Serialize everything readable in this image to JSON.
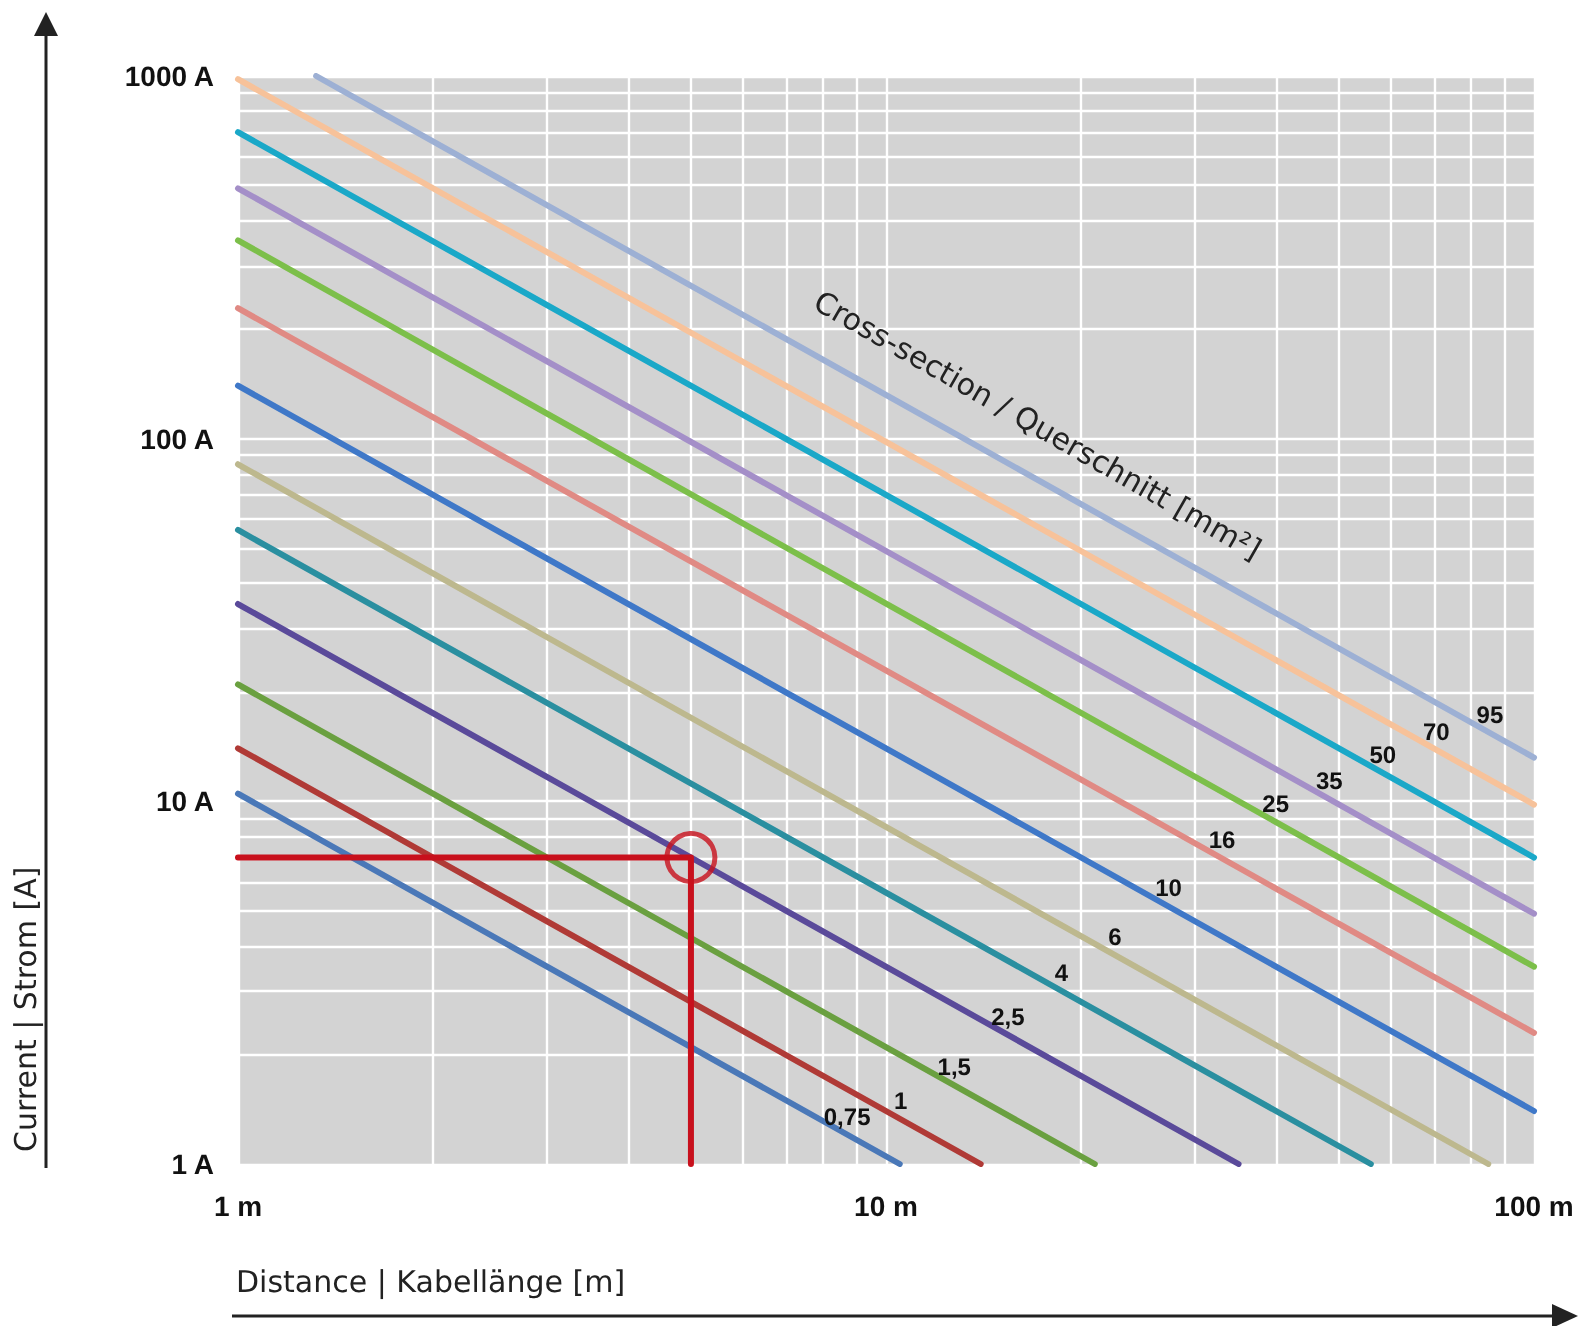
{
  "chart_data": {
    "type": "line",
    "xlabel": "Distance | Kabellänge [m]",
    "ylabel": "Current | Strom [A]",
    "annotations": [
      "Cross-section / Querschnitt [mm²]"
    ],
    "log": "xy",
    "grid": true,
    "legend": false,
    "line_style": "solid",
    "xlim": [
      1,
      100
    ],
    "ylim": [
      1,
      1000
    ],
    "xticks": [
      {
        "value": 1,
        "label": "1 m"
      },
      {
        "value": 2,
        "label": null
      },
      {
        "value": 3,
        "label": null
      },
      {
        "value": 4,
        "label": null
      },
      {
        "value": 5,
        "label": null
      },
      {
        "value": 6,
        "label": null
      },
      {
        "value": 7,
        "label": null
      },
      {
        "value": 8,
        "label": null
      },
      {
        "value": 9,
        "label": null
      },
      {
        "value": 10,
        "label": "10 m"
      },
      {
        "value": 20,
        "label": null
      },
      {
        "value": 30,
        "label": null
      },
      {
        "value": 40,
        "label": null
      },
      {
        "value": 50,
        "label": null
      },
      {
        "value": 60,
        "label": null
      },
      {
        "value": 70,
        "label": null
      },
      {
        "value": 80,
        "label": null
      },
      {
        "value": 90,
        "label": null
      },
      {
        "value": 100,
        "label": "100 m"
      }
    ],
    "yticks": [
      {
        "value": 1,
        "label": "1 A"
      },
      {
        "value": 2,
        "label": null
      },
      {
        "value": 3,
        "label": null
      },
      {
        "value": 4,
        "label": null
      },
      {
        "value": 5,
        "label": null
      },
      {
        "value": 6,
        "label": null
      },
      {
        "value": 7,
        "label": null
      },
      {
        "value": 8,
        "label": null
      },
      {
        "value": 9,
        "label": null
      },
      {
        "value": 10,
        "label": "10 A"
      },
      {
        "value": 20,
        "label": null
      },
      {
        "value": 30,
        "label": null
      },
      {
        "value": 40,
        "label": null
      },
      {
        "value": 50,
        "label": null
      },
      {
        "value": 60,
        "label": null
      },
      {
        "value": 70,
        "label": null
      },
      {
        "value": 80,
        "label": null
      },
      {
        "value": 90,
        "label": null
      },
      {
        "value": 100,
        "label": "100 A"
      },
      {
        "value": 200,
        "label": null
      },
      {
        "value": 300,
        "label": null
      },
      {
        "value": 400,
        "label": null
      },
      {
        "value": 500,
        "label": null
      },
      {
        "value": 600,
        "label": null
      },
      {
        "value": 700,
        "label": null
      },
      {
        "value": 800,
        "label": null
      },
      {
        "value": 900,
        "label": null
      },
      {
        "value": 1000,
        "label": "1000 A"
      }
    ],
    "series": [
      {
        "name": "0,75",
        "color": "#4a78b8",
        "x": [
          1,
          10.5
        ],
        "values": [
          10.5,
          1
        ]
      },
      {
        "name": "1",
        "color": "#b03a36",
        "x": [
          1,
          14
        ],
        "values": [
          14,
          1
        ]
      },
      {
        "name": "1,5",
        "color": "#6aa040",
        "x": [
          1,
          21
        ],
        "values": [
          21,
          1
        ]
      },
      {
        "name": "2,5",
        "color": "#5a4a9a",
        "x": [
          1,
          35
        ],
        "values": [
          35,
          1
        ]
      },
      {
        "name": "4",
        "color": "#2a8fa0",
        "x": [
          1,
          56
        ],
        "values": [
          56,
          1
        ]
      },
      {
        "name": "6",
        "color": "#bdb88e",
        "x": [
          1,
          85
        ],
        "values": [
          85,
          1
        ]
      },
      {
        "name": "10",
        "color": "#3f78c8",
        "x": [
          1,
          100
        ],
        "values": [
          140,
          1.4
        ]
      },
      {
        "name": "16",
        "color": "#e08a84",
        "x": [
          1,
          100
        ],
        "values": [
          229,
          2.3
        ]
      },
      {
        "name": "25",
        "color": "#7cbf4a",
        "x": [
          1,
          100
        ],
        "values": [
          352,
          3.5
        ]
      },
      {
        "name": "35",
        "color": "#a48fc8",
        "x": [
          1,
          100
        ],
        "values": [
          490,
          4.9
        ]
      },
      {
        "name": "50",
        "color": "#1aa8c8",
        "x": [
          1,
          100
        ],
        "values": [
          700,
          7
        ]
      },
      {
        "name": "70",
        "color": "#f7c29a",
        "x": [
          1,
          100
        ],
        "values": [
          980,
          9.8
        ]
      },
      {
        "name": "95",
        "color": "#9db0d4",
        "x": [
          1.32,
          100
        ],
        "values": [
          1000,
          13.2
        ]
      },
      {
        "type": "line",
        "color": "#c8101c",
        "x": [
          1,
          5,
          5
        ],
        "values": [
          7,
          7,
          1
        ]
      },
      {
        "type": "scatter",
        "marker": "circle",
        "color": "#c8101c",
        "x": [
          5
        ],
        "values": [
          7
        ]
      }
    ]
  }
}
